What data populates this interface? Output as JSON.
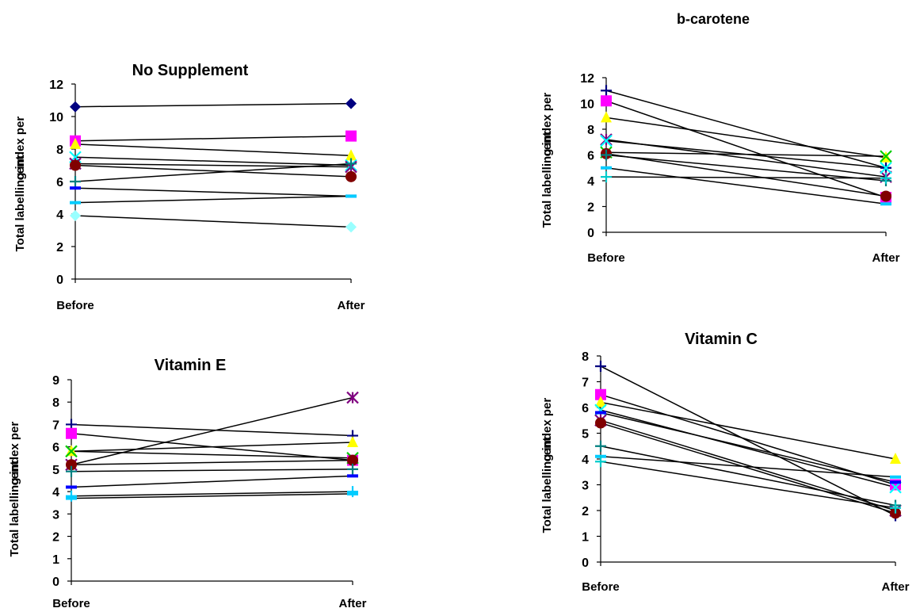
{
  "chart_data": [
    {
      "type": "line",
      "title": "No Supplement",
      "ylabel": "Total labelling index per cent",
      "categories": [
        "Before",
        "After"
      ],
      "ylim": [
        0,
        12
      ],
      "yticks": [
        0,
        2,
        4,
        6,
        8,
        10,
        12
      ],
      "series": [
        {
          "values": [
            10.6,
            10.8
          ],
          "marker": "diamond",
          "color": "#000080"
        },
        {
          "values": [
            8.5,
            8.8
          ],
          "marker": "square",
          "color": "#ff00ff"
        },
        {
          "values": [
            8.3,
            7.6
          ],
          "marker": "triangle",
          "color": "#ffff00"
        },
        {
          "values": [
            7.5,
            7.0
          ],
          "marker": "x",
          "color": "#00ffff"
        },
        {
          "values": [
            7.1,
            6.9
          ],
          "marker": "star",
          "color": "#800080"
        },
        {
          "values": [
            7.0,
            6.3
          ],
          "marker": "circle",
          "color": "#800000"
        },
        {
          "values": [
            6.0,
            7.1
          ],
          "marker": "plus",
          "color": "#008080"
        },
        {
          "values": [
            5.6,
            5.1
          ],
          "marker": "dash",
          "color": "#0000ff"
        },
        {
          "values": [
            4.7,
            5.1
          ],
          "marker": "dash",
          "color": "#00ccff"
        },
        {
          "values": [
            3.9,
            3.2
          ],
          "marker": "diamond",
          "color": "#99ffff"
        }
      ]
    },
    {
      "type": "line",
      "title": "b-carotene",
      "ylabel": "Total labelling index per cent",
      "categories": [
        "Before",
        "After"
      ],
      "ylim": [
        0,
        12
      ],
      "yticks": [
        0,
        2,
        4,
        6,
        8,
        10,
        12
      ],
      "series": [
        {
          "values": [
            11.0,
            5.0
          ],
          "marker": "plus",
          "color": "#000080"
        },
        {
          "values": [
            10.2,
            2.7
          ],
          "marker": "square",
          "color": "#ff00ff"
        },
        {
          "values": [
            8.9,
            5.8
          ],
          "marker": "triangle",
          "color": "#ffff00"
        },
        {
          "values": [
            7.2,
            4.3
          ],
          "marker": "star",
          "color": "#800080"
        },
        {
          "values": [
            7.1,
            5.0
          ],
          "marker": "x",
          "color": "#00ffff"
        },
        {
          "values": [
            6.2,
            5.9
          ],
          "marker": "x",
          "color": "#00cc00"
        },
        {
          "values": [
            6.1,
            2.8
          ],
          "marker": "circle",
          "color": "#800000"
        },
        {
          "values": [
            6.0,
            4.0
          ],
          "marker": "plus",
          "color": "#008080"
        },
        {
          "values": [
            5.0,
            2.2
          ],
          "marker": "dash",
          "color": "#00ccff"
        },
        {
          "values": [
            4.3,
            4.2
          ],
          "marker": "plus",
          "color": "#00cccc"
        }
      ]
    },
    {
      "type": "line",
      "title": "Vitamin E",
      "ylabel": "Total labelling index per cent",
      "categories": [
        "Before",
        "After"
      ],
      "ylim": [
        0,
        9
      ],
      "yticks": [
        0,
        1,
        2,
        3,
        4,
        5,
        6,
        7,
        8,
        9
      ],
      "series": [
        {
          "values": [
            7.0,
            6.5
          ],
          "marker": "plus",
          "color": "#000080"
        },
        {
          "values": [
            6.6,
            5.4
          ],
          "marker": "square",
          "color": "#ff00ff"
        },
        {
          "values": [
            5.8,
            6.2
          ],
          "marker": "triangle",
          "color": "#ffff00"
        },
        {
          "values": [
            5.8,
            5.5
          ],
          "marker": "x",
          "color": "#00cc00"
        },
        {
          "values": [
            5.2,
            8.2
          ],
          "marker": "star",
          "color": "#800080"
        },
        {
          "values": [
            5.2,
            5.4
          ],
          "marker": "circle",
          "color": "#800000"
        },
        {
          "values": [
            4.9,
            5.0
          ],
          "marker": "plus",
          "color": "#008080"
        },
        {
          "values": [
            4.2,
            4.7
          ],
          "marker": "dash",
          "color": "#0000ff"
        },
        {
          "values": [
            3.8,
            4.0
          ],
          "marker": "plus",
          "color": "#00ccff"
        },
        {
          "values": [
            3.7,
            3.9
          ],
          "marker": "dash",
          "color": "#00ccff"
        }
      ]
    },
    {
      "type": "line",
      "title": "Vitamin C",
      "ylabel": "Total labelling index per cent",
      "categories": [
        "Before",
        "After"
      ],
      "ylim": [
        0,
        8
      ],
      "yticks": [
        0,
        1,
        2,
        3,
        4,
        5,
        6,
        7,
        8
      ],
      "series": [
        {
          "values": [
            7.6,
            1.8
          ],
          "marker": "plus",
          "color": "#000080"
        },
        {
          "values": [
            6.5,
            3.0
          ],
          "marker": "square",
          "color": "#ff00ff"
        },
        {
          "values": [
            6.2,
            4.0
          ],
          "marker": "triangle",
          "color": "#ffff00"
        },
        {
          "values": [
            5.9,
            2.9
          ],
          "marker": "x",
          "color": "#00ffff"
        },
        {
          "values": [
            5.8,
            3.1
          ],
          "marker": "dash",
          "color": "#0000ff"
        },
        {
          "values": [
            5.5,
            2.0
          ],
          "marker": "star",
          "color": "#800080"
        },
        {
          "values": [
            5.4,
            1.9
          ],
          "marker": "circle",
          "color": "#800000"
        },
        {
          "values": [
            4.5,
            2.2
          ],
          "marker": "plus",
          "color": "#008080"
        },
        {
          "values": [
            4.1,
            3.3
          ],
          "marker": "dash",
          "color": "#00ccff"
        },
        {
          "values": [
            3.9,
            2.1
          ],
          "marker": "plus",
          "color": "#00cccc"
        }
      ]
    }
  ]
}
